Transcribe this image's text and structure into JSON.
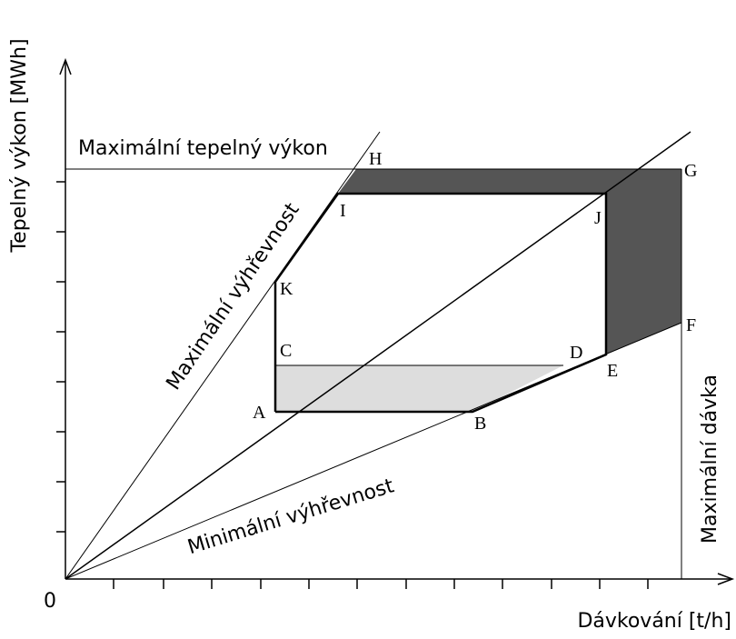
{
  "axes": {
    "y_label": "Tepelný výkon [MWh]",
    "x_label": "Dávkování [t/h]",
    "origin": "0"
  },
  "lines": {
    "max_power": "Maximální tepelný výkon",
    "max_heating_value": "Maximální výhřevnost",
    "min_heating_value": "Minimální výhřevnost",
    "max_feed": "Maximální dávka"
  },
  "points": {
    "A": "A",
    "B": "B",
    "C": "C",
    "D": "D",
    "E": "E",
    "F": "F",
    "G": "G",
    "H": "H",
    "I": "I",
    "J": "J",
    "K": "K"
  }
}
